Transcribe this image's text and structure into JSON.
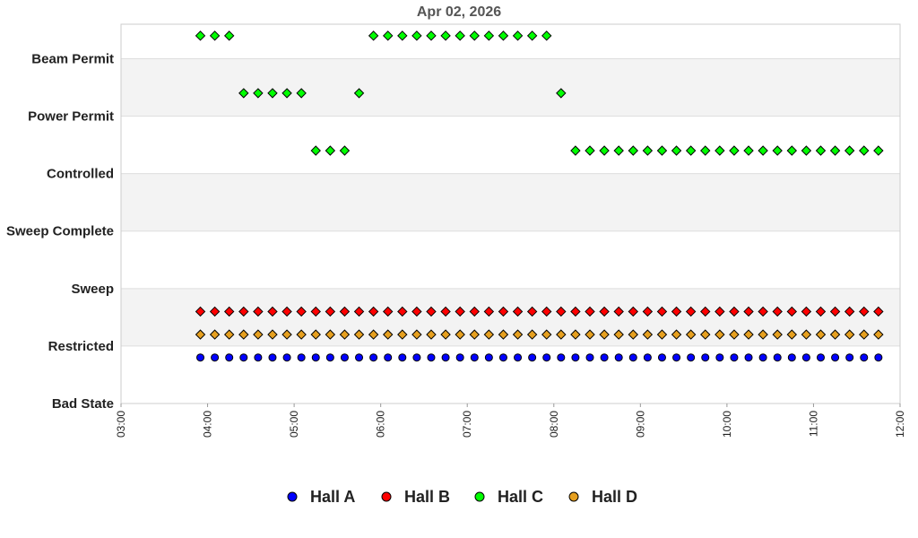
{
  "chart_data": {
    "type": "scatter",
    "title": "Apr 02, 2026",
    "xlabel": "",
    "ylabel": "",
    "x_ticks": [
      "03:00",
      "04:00",
      "05:00",
      "06:00",
      "07:00",
      "08:00",
      "09:00",
      "10:00",
      "11:00",
      "12:00"
    ],
    "xlim": [
      "03:00",
      "12:00"
    ],
    "y_categories": [
      "Bad State",
      "Restricted",
      "Sweep",
      "Sweep Complete",
      "Controlled",
      "Power Permit",
      "Beam Permit"
    ],
    "grid": "alternating horizontal bands",
    "legend_position": "bottom",
    "series": [
      {
        "name": "Hall A",
        "color": "#0000ff",
        "marker": "circle",
        "points": [
          [
            "03:55",
            0.8
          ],
          [
            "04:05",
            0.8
          ],
          [
            "04:15",
            0.8
          ],
          [
            "04:25",
            0.8
          ],
          [
            "04:35",
            0.8
          ],
          [
            "04:45",
            0.8
          ],
          [
            "04:55",
            0.8
          ],
          [
            "05:05",
            0.8
          ],
          [
            "05:15",
            0.8
          ],
          [
            "05:25",
            0.8
          ],
          [
            "05:35",
            0.8
          ],
          [
            "05:45",
            0.8
          ],
          [
            "05:55",
            0.8
          ],
          [
            "06:05",
            0.8
          ],
          [
            "06:15",
            0.8
          ],
          [
            "06:25",
            0.8
          ],
          [
            "06:35",
            0.8
          ],
          [
            "06:45",
            0.8
          ],
          [
            "06:55",
            0.8
          ],
          [
            "07:05",
            0.8
          ],
          [
            "07:15",
            0.8
          ],
          [
            "07:25",
            0.8
          ],
          [
            "07:35",
            0.8
          ],
          [
            "07:45",
            0.8
          ],
          [
            "07:55",
            0.8
          ],
          [
            "08:05",
            0.8
          ],
          [
            "08:15",
            0.8
          ],
          [
            "08:25",
            0.8
          ],
          [
            "08:35",
            0.8
          ],
          [
            "08:45",
            0.8
          ],
          [
            "08:55",
            0.8
          ],
          [
            "09:05",
            0.8
          ],
          [
            "09:15",
            0.8
          ],
          [
            "09:25",
            0.8
          ],
          [
            "09:35",
            0.8
          ],
          [
            "09:45",
            0.8
          ],
          [
            "09:55",
            0.8
          ],
          [
            "10:05",
            0.8
          ],
          [
            "10:15",
            0.8
          ],
          [
            "10:25",
            0.8
          ],
          [
            "10:35",
            0.8
          ],
          [
            "10:45",
            0.8
          ],
          [
            "10:55",
            0.8
          ],
          [
            "11:05",
            0.8
          ],
          [
            "11:15",
            0.8
          ],
          [
            "11:25",
            0.8
          ],
          [
            "11:35",
            0.8
          ],
          [
            "11:45",
            0.8
          ]
        ]
      },
      {
        "name": "Hall B",
        "color": "#ff0000",
        "marker": "diamond",
        "points": [
          [
            "03:55",
            1.6
          ],
          [
            "04:05",
            1.6
          ],
          [
            "04:15",
            1.6
          ],
          [
            "04:25",
            1.6
          ],
          [
            "04:35",
            1.6
          ],
          [
            "04:45",
            1.6
          ],
          [
            "04:55",
            1.6
          ],
          [
            "05:05",
            1.6
          ],
          [
            "05:15",
            1.6
          ],
          [
            "05:25",
            1.6
          ],
          [
            "05:35",
            1.6
          ],
          [
            "05:45",
            1.6
          ],
          [
            "05:55",
            1.6
          ],
          [
            "06:05",
            1.6
          ],
          [
            "06:15",
            1.6
          ],
          [
            "06:25",
            1.6
          ],
          [
            "06:35",
            1.6
          ],
          [
            "06:45",
            1.6
          ],
          [
            "06:55",
            1.6
          ],
          [
            "07:05",
            1.6
          ],
          [
            "07:15",
            1.6
          ],
          [
            "07:25",
            1.6
          ],
          [
            "07:35",
            1.6
          ],
          [
            "07:45",
            1.6
          ],
          [
            "07:55",
            1.6
          ],
          [
            "08:05",
            1.6
          ],
          [
            "08:15",
            1.6
          ],
          [
            "08:25",
            1.6
          ],
          [
            "08:35",
            1.6
          ],
          [
            "08:45",
            1.6
          ],
          [
            "08:55",
            1.6
          ],
          [
            "09:05",
            1.6
          ],
          [
            "09:15",
            1.6
          ],
          [
            "09:25",
            1.6
          ],
          [
            "09:35",
            1.6
          ],
          [
            "09:45",
            1.6
          ],
          [
            "09:55",
            1.6
          ],
          [
            "10:05",
            1.6
          ],
          [
            "10:15",
            1.6
          ],
          [
            "10:25",
            1.6
          ],
          [
            "10:35",
            1.6
          ],
          [
            "10:45",
            1.6
          ],
          [
            "10:55",
            1.6
          ],
          [
            "11:05",
            1.6
          ],
          [
            "11:15",
            1.6
          ],
          [
            "11:25",
            1.6
          ],
          [
            "11:35",
            1.6
          ],
          [
            "11:45",
            1.6
          ]
        ]
      },
      {
        "name": "Hall C",
        "color": "#00ff00",
        "marker": "diamond",
        "points": [
          [
            "03:55",
            6.4
          ],
          [
            "04:05",
            6.4
          ],
          [
            "04:15",
            6.4
          ],
          [
            "04:25",
            5.4
          ],
          [
            "04:35",
            5.4
          ],
          [
            "04:45",
            5.4
          ],
          [
            "04:55",
            5.4
          ],
          [
            "05:05",
            5.4
          ],
          [
            "05:15",
            4.4
          ],
          [
            "05:25",
            4.4
          ],
          [
            "05:35",
            4.4
          ],
          [
            "05:45",
            5.4
          ],
          [
            "05:55",
            6.4
          ],
          [
            "06:05",
            6.4
          ],
          [
            "06:15",
            6.4
          ],
          [
            "06:25",
            6.4
          ],
          [
            "06:35",
            6.4
          ],
          [
            "06:45",
            6.4
          ],
          [
            "06:55",
            6.4
          ],
          [
            "07:05",
            6.4
          ],
          [
            "07:15",
            6.4
          ],
          [
            "07:25",
            6.4
          ],
          [
            "07:35",
            6.4
          ],
          [
            "07:45",
            6.4
          ],
          [
            "07:55",
            6.4
          ],
          [
            "08:05",
            5.4
          ],
          [
            "08:15",
            4.4
          ],
          [
            "08:25",
            4.4
          ],
          [
            "08:35",
            4.4
          ],
          [
            "08:45",
            4.4
          ],
          [
            "08:55",
            4.4
          ],
          [
            "09:05",
            4.4
          ],
          [
            "09:15",
            4.4
          ],
          [
            "09:25",
            4.4
          ],
          [
            "09:35",
            4.4
          ],
          [
            "09:45",
            4.4
          ],
          [
            "09:55",
            4.4
          ],
          [
            "10:05",
            4.4
          ],
          [
            "10:15",
            4.4
          ],
          [
            "10:25",
            4.4
          ],
          [
            "10:35",
            4.4
          ],
          [
            "10:45",
            4.4
          ],
          [
            "10:55",
            4.4
          ],
          [
            "11:05",
            4.4
          ],
          [
            "11:15",
            4.4
          ],
          [
            "11:25",
            4.4
          ],
          [
            "11:35",
            4.4
          ],
          [
            "11:45",
            4.4
          ]
        ]
      },
      {
        "name": "Hall D",
        "color": "#e6a020",
        "marker": "diamond",
        "points": [
          [
            "03:55",
            1.2
          ],
          [
            "04:05",
            1.2
          ],
          [
            "04:15",
            1.2
          ],
          [
            "04:25",
            1.2
          ],
          [
            "04:35",
            1.2
          ],
          [
            "04:45",
            1.2
          ],
          [
            "04:55",
            1.2
          ],
          [
            "05:05",
            1.2
          ],
          [
            "05:15",
            1.2
          ],
          [
            "05:25",
            1.2
          ],
          [
            "05:35",
            1.2
          ],
          [
            "05:45",
            1.2
          ],
          [
            "05:55",
            1.2
          ],
          [
            "06:05",
            1.2
          ],
          [
            "06:15",
            1.2
          ],
          [
            "06:25",
            1.2
          ],
          [
            "06:35",
            1.2
          ],
          [
            "06:45",
            1.2
          ],
          [
            "06:55",
            1.2
          ],
          [
            "07:05",
            1.2
          ],
          [
            "07:15",
            1.2
          ],
          [
            "07:25",
            1.2
          ],
          [
            "07:35",
            1.2
          ],
          [
            "07:45",
            1.2
          ],
          [
            "07:55",
            1.2
          ],
          [
            "08:05",
            1.2
          ],
          [
            "08:15",
            1.2
          ],
          [
            "08:25",
            1.2
          ],
          [
            "08:35",
            1.2
          ],
          [
            "08:45",
            1.2
          ],
          [
            "08:55",
            1.2
          ],
          [
            "09:05",
            1.2
          ],
          [
            "09:15",
            1.2
          ],
          [
            "09:25",
            1.2
          ],
          [
            "09:35",
            1.2
          ],
          [
            "09:45",
            1.2
          ],
          [
            "09:55",
            1.2
          ],
          [
            "10:05",
            1.2
          ],
          [
            "10:15",
            1.2
          ],
          [
            "10:25",
            1.2
          ],
          [
            "10:35",
            1.2
          ],
          [
            "10:45",
            1.2
          ],
          [
            "10:55",
            1.2
          ],
          [
            "11:05",
            1.2
          ],
          [
            "11:15",
            1.2
          ],
          [
            "11:25",
            1.2
          ],
          [
            "11:35",
            1.2
          ],
          [
            "11:45",
            1.2
          ]
        ]
      }
    ]
  }
}
